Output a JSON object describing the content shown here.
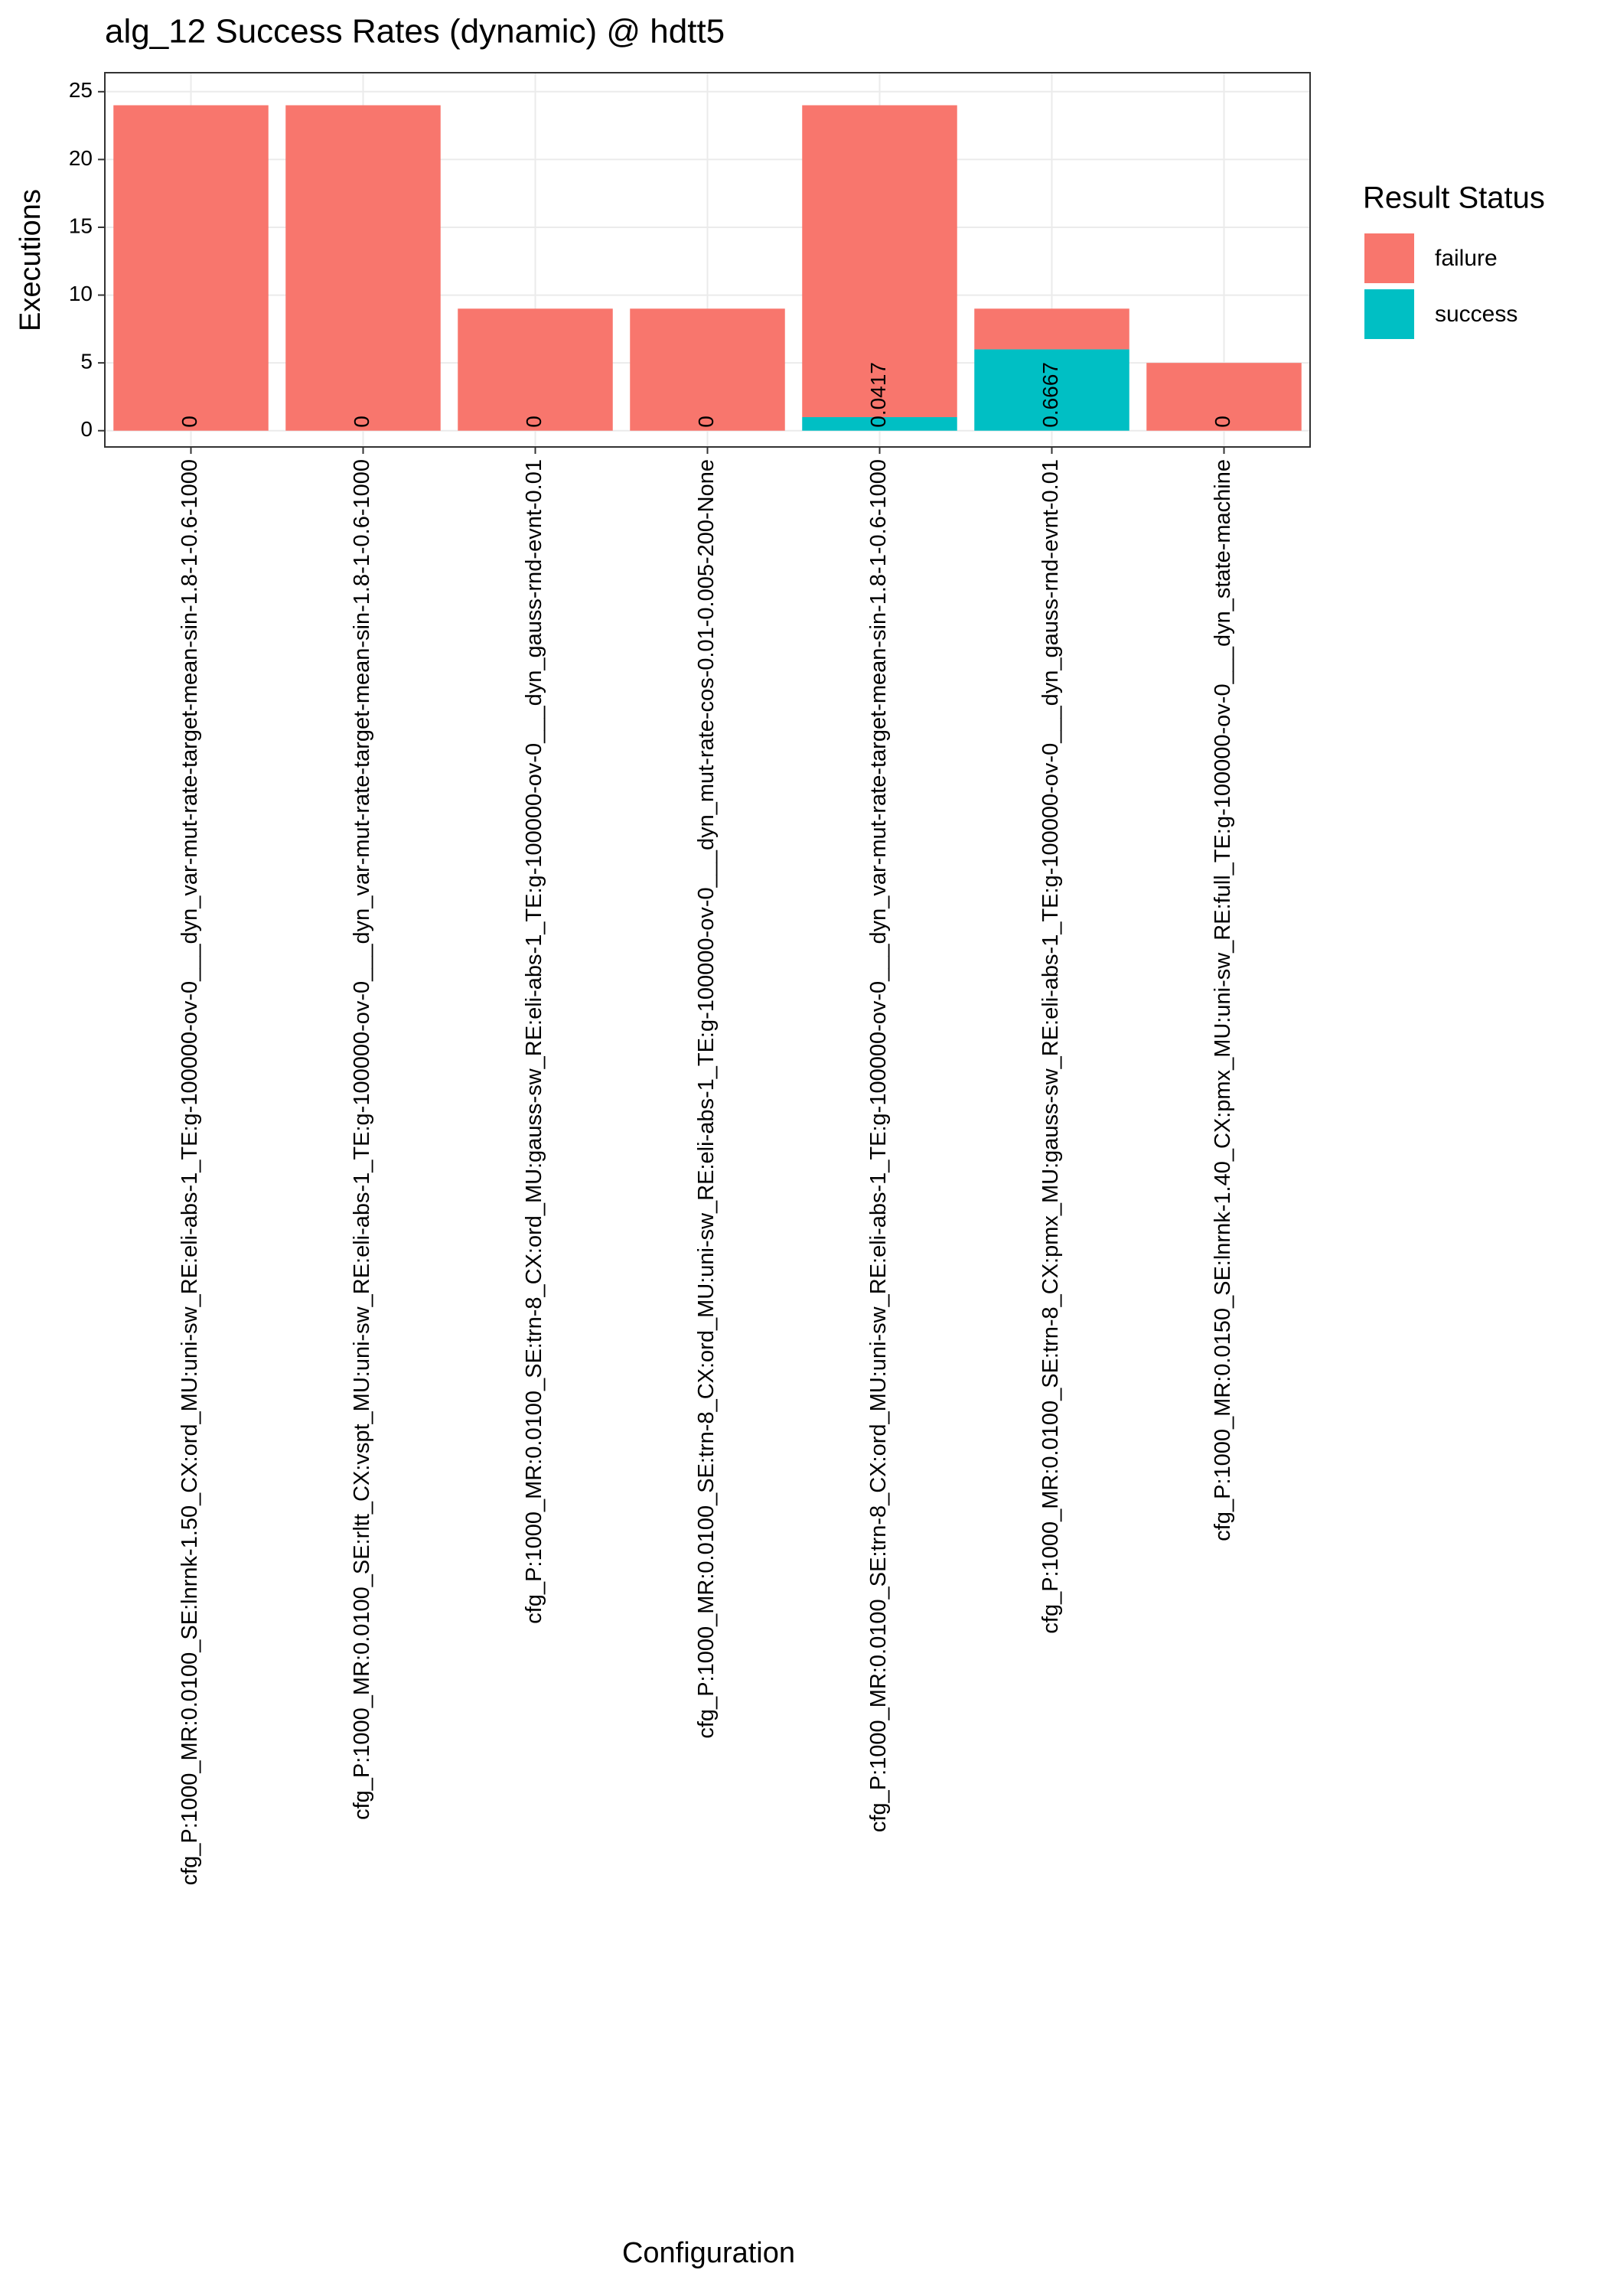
{
  "chart_data": {
    "type": "bar",
    "stacked": true,
    "title": "alg_12 Success Rates (dynamic) @ hdtt5",
    "x_label": "Configuration",
    "y_label": "Executions",
    "legend_title": "Result Status",
    "categories": [
      "cfg_P:1000_MR:0.0100_SE:lnrnk-1.50_CX:ord_MU:uni-sw_RE:eli-abs-1_TE:g-100000-ov-0___dyn_var-mut-rate-target-mean-sin-1.8-1-0.6-1000",
      "cfg_P:1000_MR:0.0100_SE:rltt_CX:vspt_MU:uni-sw_RE:eli-abs-1_TE:g-100000-ov-0___dyn_var-mut-rate-target-mean-sin-1.8-1-0.6-1000",
      "cfg_P:1000_MR:0.0100_SE:trn-8_CX:ord_MU:gauss-sw_RE:eli-abs-1_TE:g-100000-ov-0___dyn_gauss-rnd-evnt-0.01",
      "cfg_P:1000_MR:0.0100_SE:trn-8_CX:ord_MU:uni-sw_RE:eli-abs-1_TE:g-100000-ov-0___dyn_mut-rate-cos-0.01-0.005-200-None",
      "cfg_P:1000_MR:0.0100_SE:trn-8_CX:ord_MU:uni-sw_RE:eli-abs-1_TE:g-100000-ov-0___dyn_var-mut-rate-target-mean-sin-1.8-1-0.6-1000",
      "cfg_P:1000_MR:0.0100_SE:trn-8_CX:pmx_MU:gauss-sw_RE:eli-abs-1_TE:g-100000-ov-0___dyn_gauss-rnd-evnt-0.01",
      "cfg_P:1000_MR:0.0150_SE:lnrnk-1.40_CX:pmx_MU:uni-sw_RE:full_TE:g-100000-ov-0___dyn_state-machine"
    ],
    "series": [
      {
        "name": "success",
        "color": "#00bfc4",
        "values": [
          0,
          0,
          0,
          0,
          1,
          6,
          0
        ]
      },
      {
        "name": "failure",
        "color": "#f8766d",
        "values": [
          24,
          24,
          9,
          9,
          23,
          3,
          5
        ]
      }
    ],
    "success_rates": [
      0,
      0,
      0,
      0,
      0.0417,
      0.6667,
      0
    ],
    "ylim": [
      -1.2,
      26.4
    ],
    "yticks": [
      0,
      5,
      10,
      15,
      20,
      25
    ],
    "grid": true
  }
}
